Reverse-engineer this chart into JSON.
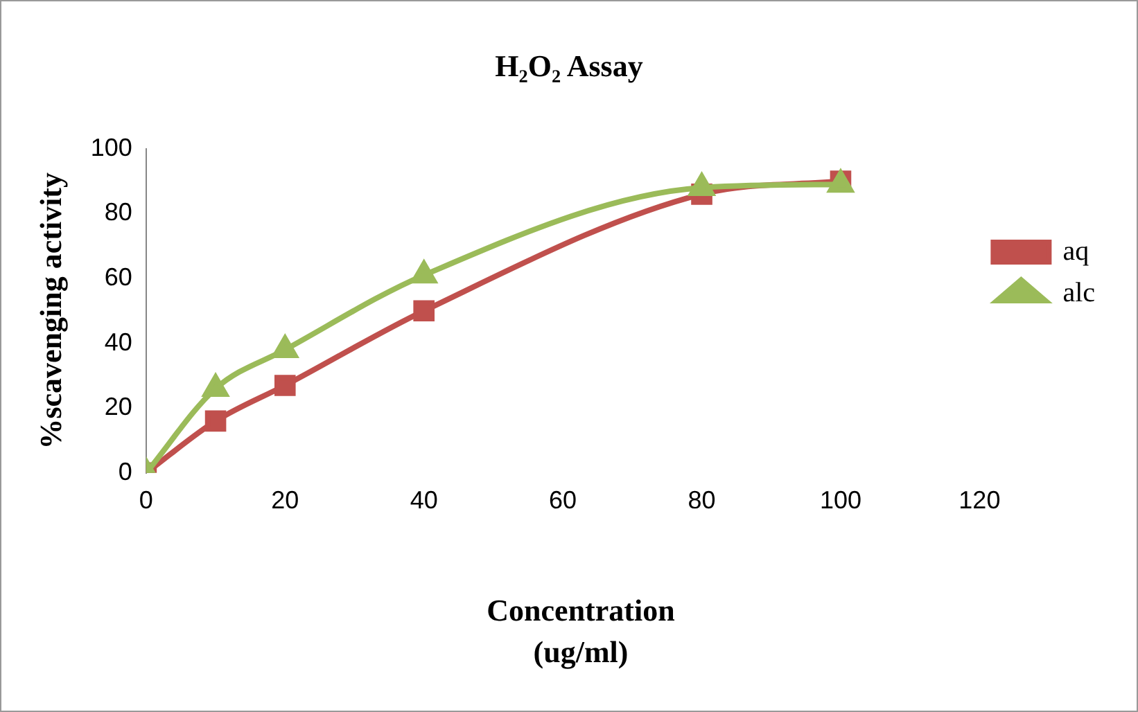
{
  "chart_data": {
    "type": "line",
    "title": "H₂O₂ Assay",
    "xlabel": "Concentration (ug/ml)",
    "ylabel": "%scavenging activity",
    "x": [
      0,
      10,
      20,
      40,
      80,
      100
    ],
    "series": [
      {
        "name": "aq",
        "color": "#c0504d",
        "marker": "square",
        "values": [
          0,
          16,
          27,
          50,
          86,
          90
        ]
      },
      {
        "name": "alc",
        "color": "#9bbb59",
        "marker": "triangle",
        "values": [
          0,
          26,
          38,
          61,
          88,
          89
        ]
      }
    ],
    "xlim": [
      0,
      120
    ],
    "xticks": [
      0,
      20,
      40,
      60,
      80,
      100,
      120
    ],
    "ylim": [
      0,
      100
    ],
    "yticks": [
      0,
      20,
      40,
      60,
      80,
      100
    ],
    "grid": false,
    "legend": "right"
  }
}
